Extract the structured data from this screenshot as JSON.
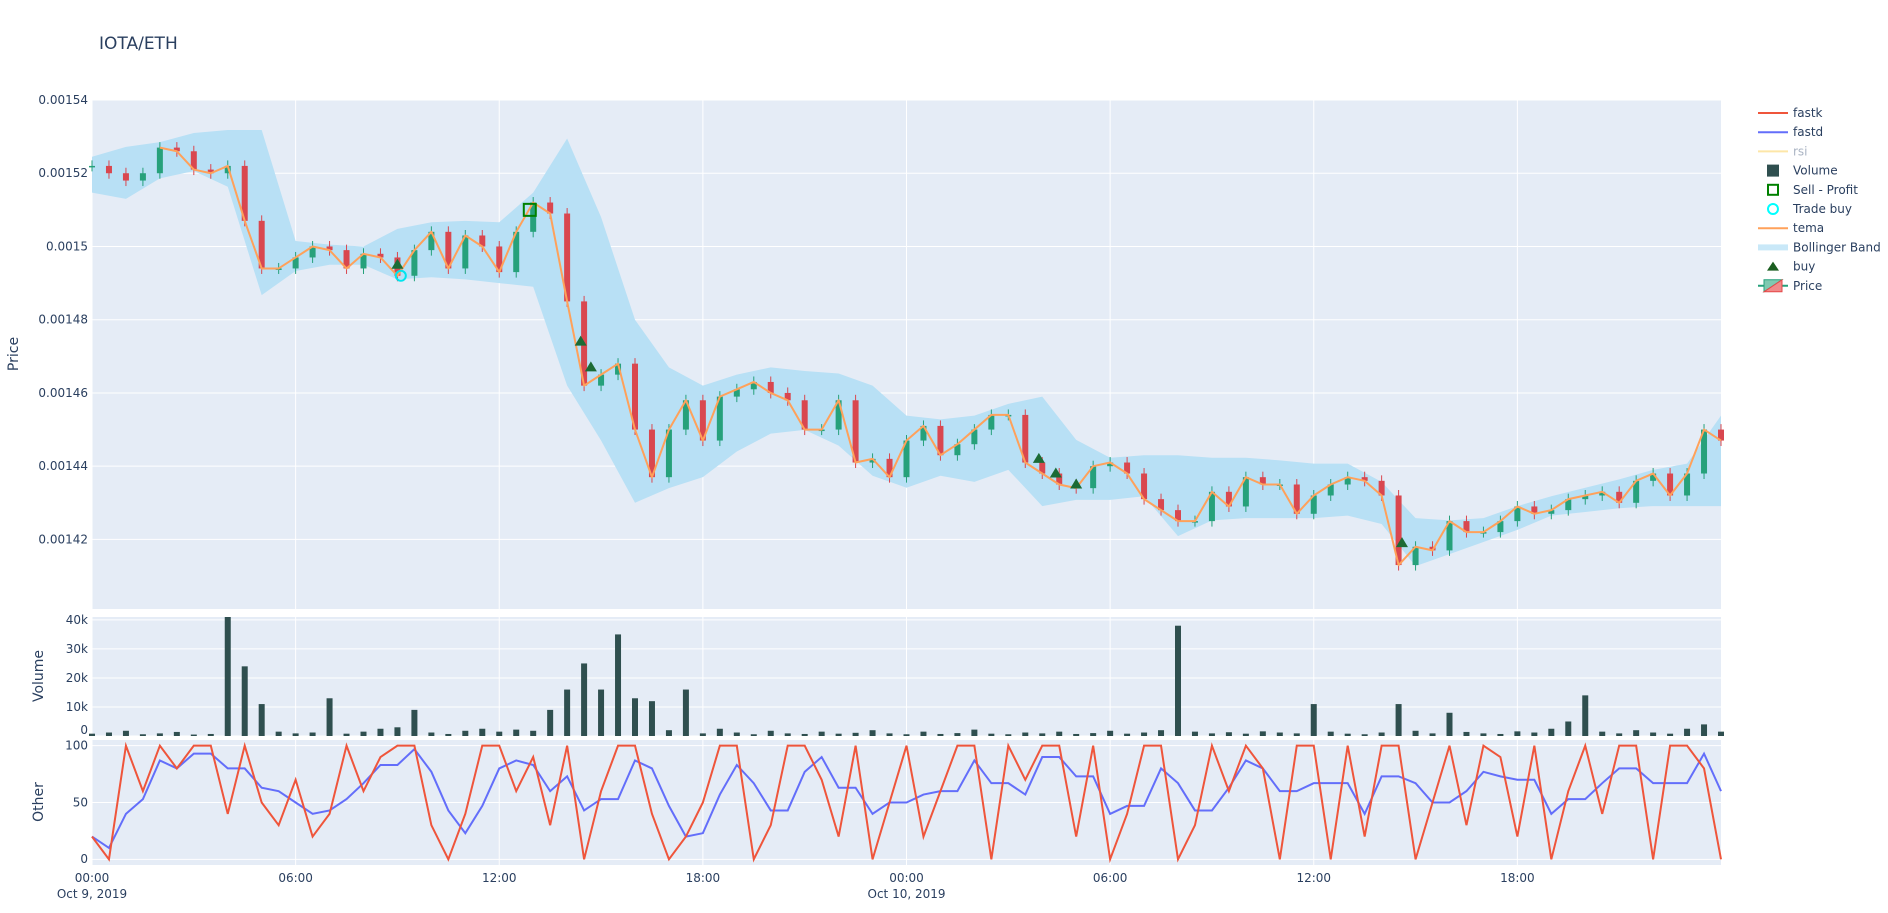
{
  "chart_data": {
    "type": "candlestick",
    "title": "IOTA/ETH",
    "panels": [
      {
        "name": "price",
        "ylabel": "Price",
        "ylim": [
          0.001401,
          0.00154
        ],
        "yticks": [
          0.00142,
          0.00144,
          0.00146,
          0.00148,
          0.0015,
          0.00152,
          0.00154
        ],
        "yticklabels": [
          "0.00142",
          "0.00144",
          "0.00146",
          "0.00148",
          "0.0015",
          "0.00152",
          "0.00154"
        ]
      },
      {
        "name": "volume",
        "ylabel": "Volume",
        "ylim": [
          0,
          41000
        ],
        "yticks": [
          0,
          10000,
          20000,
          30000,
          40000
        ],
        "yticklabels": [
          "0",
          "10k",
          "20k",
          "30k",
          "40k"
        ]
      },
      {
        "name": "other",
        "ylabel": "Other",
        "ylim": [
          -5,
          105
        ],
        "yticks": [
          0,
          50,
          100
        ],
        "yticklabels": [
          "0",
          "50",
          "100"
        ]
      }
    ],
    "xlim": [
      "2019-10-09 00:00",
      "2019-10-11 00:00"
    ],
    "xticks": [
      {
        "time": "2019-10-09 00:00",
        "label": "00:00",
        "sub": "Oct 9, 2019"
      },
      {
        "time": "2019-10-09 06:00",
        "label": "06:00",
        "sub": ""
      },
      {
        "time": "2019-10-09 12:00",
        "label": "12:00",
        "sub": ""
      },
      {
        "time": "2019-10-09 18:00",
        "label": "18:00",
        "sub": ""
      },
      {
        "time": "2019-10-10 00:00",
        "label": "00:00",
        "sub": "Oct 10, 2019"
      },
      {
        "time": "2019-10-10 06:00",
        "label": "06:00",
        "sub": ""
      },
      {
        "time": "2019-10-10 12:00",
        "label": "12:00",
        "sub": ""
      },
      {
        "time": "2019-10-10 18:00",
        "label": "18:00",
        "sub": ""
      }
    ],
    "grid": true,
    "legend_placement": "top-right",
    "time": [
      "2019-10-09 00:00",
      "2019-10-09 00:30",
      "2019-10-09 01:00",
      "2019-10-09 01:30",
      "2019-10-09 02:00",
      "2019-10-09 02:30",
      "2019-10-09 03:00",
      "2019-10-09 03:30",
      "2019-10-09 04:00",
      "2019-10-09 04:30",
      "2019-10-09 05:00",
      "2019-10-09 05:30",
      "2019-10-09 06:00",
      "2019-10-09 06:30",
      "2019-10-09 07:00",
      "2019-10-09 07:30",
      "2019-10-09 08:00",
      "2019-10-09 08:30",
      "2019-10-09 09:00",
      "2019-10-09 09:30",
      "2019-10-09 10:00",
      "2019-10-09 10:30",
      "2019-10-09 11:00",
      "2019-10-09 11:30",
      "2019-10-09 12:00",
      "2019-10-09 12:30",
      "2019-10-09 13:00",
      "2019-10-09 13:30",
      "2019-10-09 14:00",
      "2019-10-09 14:30",
      "2019-10-09 15:00",
      "2019-10-09 15:30",
      "2019-10-09 16:00",
      "2019-10-09 16:30",
      "2019-10-09 17:00",
      "2019-10-09 17:30",
      "2019-10-09 18:00",
      "2019-10-09 18:30",
      "2019-10-09 19:00",
      "2019-10-09 19:30",
      "2019-10-09 20:00",
      "2019-10-09 20:30",
      "2019-10-09 21:00",
      "2019-10-09 21:30",
      "2019-10-09 22:00",
      "2019-10-09 22:30",
      "2019-10-09 23:00",
      "2019-10-09 23:30",
      "2019-10-10 00:00",
      "2019-10-10 00:30",
      "2019-10-10 01:00",
      "2019-10-10 01:30",
      "2019-10-10 02:00",
      "2019-10-10 02:30",
      "2019-10-10 03:00",
      "2019-10-10 03:30",
      "2019-10-10 04:00",
      "2019-10-10 04:30",
      "2019-10-10 05:00",
      "2019-10-10 05:30",
      "2019-10-10 06:00",
      "2019-10-10 06:30",
      "2019-10-10 07:00",
      "2019-10-10 07:30",
      "2019-10-10 08:00",
      "2019-10-10 08:30",
      "2019-10-10 09:00",
      "2019-10-10 09:30",
      "2019-10-10 10:00",
      "2019-10-10 10:30",
      "2019-10-10 11:00",
      "2019-10-10 11:30",
      "2019-10-10 12:00",
      "2019-10-10 12:30",
      "2019-10-10 13:00",
      "2019-10-10 13:30",
      "2019-10-10 14:00",
      "2019-10-10 14:30",
      "2019-10-10 15:00",
      "2019-10-10 15:30",
      "2019-10-10 16:00",
      "2019-10-10 16:30",
      "2019-10-10 17:00",
      "2019-10-10 17:30",
      "2019-10-10 18:00",
      "2019-10-10 18:30",
      "2019-10-10 19:00",
      "2019-10-10 19:30",
      "2019-10-10 20:00",
      "2019-10-10 20:30",
      "2019-10-10 21:00",
      "2019-10-10 21:30",
      "2019-10-10 22:00",
      "2019-10-10 22:30",
      "2019-10-10 23:00",
      "2019-10-10 23:30",
      "2019-10-11 00:00"
    ],
    "close": [
      0.001522,
      0.00152,
      0.001518,
      0.00152,
      0.001527,
      0.001526,
      0.001521,
      0.00152,
      0.001522,
      0.001507,
      0.001494,
      0.001494,
      0.001497,
      0.0015,
      0.001499,
      0.001494,
      0.001498,
      0.001497,
      0.001492,
      0.001499,
      0.001504,
      0.001494,
      0.001503,
      0.0015,
      0.001493,
      0.001504,
      0.001512,
      0.001509,
      0.001485,
      0.001462,
      0.001465,
      0.001468,
      0.00145,
      0.001437,
      0.00145,
      0.001458,
      0.001447,
      0.001459,
      0.001461,
      0.001463,
      0.00146,
      0.001458,
      0.00145,
      0.00145,
      0.001458,
      0.001441,
      0.001442,
      0.001437,
      0.001447,
      0.001451,
      0.001443,
      0.001446,
      0.00145,
      0.001454,
      0.001454,
      0.001441,
      0.001438,
      0.001435,
      0.001434,
      0.00144,
      0.001441,
      0.001438,
      0.001431,
      0.001428,
      0.001425,
      0.001425,
      0.001433,
      0.001429,
      0.001437,
      0.001435,
      0.001435,
      0.001427,
      0.001432,
      0.001435,
      0.001437,
      0.001436,
      0.001432,
      0.001413,
      0.001418,
      0.001417,
      0.001425,
      0.001422,
      0.001422,
      0.001425,
      0.001429,
      0.001427,
      0.001428,
      0.001431,
      0.001432,
      0.001433,
      0.00143,
      0.001436,
      0.001438,
      0.001432,
      0.001438,
      0.00145,
      0.001447
    ],
    "tema": [
      null,
      null,
      null,
      null,
      0.001527,
      0.001526,
      0.001521,
      0.00152,
      0.001522,
      0.001507,
      0.001494,
      0.001494,
      0.001497,
      0.0015,
      0.001499,
      0.001494,
      0.001498,
      0.001497,
      0.001492,
      0.001499,
      0.001504,
      0.001494,
      0.001503,
      0.0015,
      0.001493,
      0.001504,
      0.001512,
      0.001509,
      0.001485,
      0.001462,
      0.001465,
      0.001468,
      0.00145,
      0.001437,
      0.00145,
      0.001458,
      0.001447,
      0.001459,
      0.001461,
      0.001463,
      0.00146,
      0.001458,
      0.00145,
      0.00145,
      0.001458,
      0.001441,
      0.001442,
      0.001437,
      0.001447,
      0.001451,
      0.001443,
      0.001446,
      0.00145,
      0.001454,
      0.001454,
      0.001441,
      0.001438,
      0.001435,
      0.001434,
      0.00144,
      0.001441,
      0.001438,
      0.001431,
      0.001428,
      0.001425,
      0.001425,
      0.001433,
      0.001429,
      0.001437,
      0.001435,
      0.001435,
      0.001427,
      0.001432,
      0.001435,
      0.001437,
      0.001436,
      0.001432,
      0.001413,
      0.001418,
      0.001417,
      0.001425,
      0.001422,
      0.001422,
      0.001425,
      0.001429,
      0.001427,
      0.001428,
      0.001431,
      0.001432,
      0.001433,
      0.00143,
      0.001436,
      0.001438,
      0.001432,
      0.001438,
      0.00145,
      0.001447
    ],
    "bollinger_time": [
      "2019-10-09 00:00",
      "2019-10-09 01:00",
      "2019-10-09 02:00",
      "2019-10-09 03:00",
      "2019-10-09 04:00",
      "2019-10-09 05:00",
      "2019-10-09 06:00",
      "2019-10-09 07:00",
      "2019-10-09 08:00",
      "2019-10-09 09:00",
      "2019-10-09 10:00",
      "2019-10-09 11:00",
      "2019-10-09 12:00",
      "2019-10-09 13:00",
      "2019-10-09 14:00",
      "2019-10-09 15:00",
      "2019-10-09 16:00",
      "2019-10-09 17:00",
      "2019-10-09 18:00",
      "2019-10-09 19:00",
      "2019-10-09 20:00",
      "2019-10-09 21:00",
      "2019-10-09 22:00",
      "2019-10-09 23:00",
      "2019-10-10 00:00",
      "2019-10-10 01:00",
      "2019-10-10 02:00",
      "2019-10-10 03:00",
      "2019-10-10 04:00",
      "2019-10-10 05:00",
      "2019-10-10 06:00",
      "2019-10-10 07:00",
      "2019-10-10 08:00",
      "2019-10-10 09:00",
      "2019-10-10 10:00",
      "2019-10-10 11:00",
      "2019-10-10 12:00",
      "2019-10-10 13:00",
      "2019-10-10 14:00",
      "2019-10-10 15:00",
      "2019-10-10 16:00",
      "2019-10-10 17:00",
      "2019-10-10 18:00",
      "2019-10-10 19:00",
      "2019-10-10 20:00",
      "2019-10-10 21:00",
      "2019-10-10 22:00",
      "2019-10-10 23:00",
      "2019-10-11 00:00"
    ],
    "bollinger_upper": [
      0.0015245,
      0.0015272,
      0.0015285,
      0.001531,
      0.0015318,
      0.0015318,
      0.0015015,
      0.0015005,
      0.0015,
      0.0015048,
      0.0015066,
      0.001507,
      0.0015066,
      0.0015147,
      0.0015295,
      0.001508,
      0.00148,
      0.001467,
      0.001462,
      0.001465,
      0.001467,
      0.001466,
      0.0014653,
      0.001462,
      0.0014538,
      0.0014528,
      0.0014538,
      0.001457,
      0.001459,
      0.0014472,
      0.0014423,
      0.001443,
      0.001443,
      0.0014423,
      0.0014423,
      0.0014416,
      0.0014407,
      0.0014407,
      0.0014357,
      0.0014258,
      0.0014252,
      0.0014258,
      0.0014291,
      0.0014318,
      0.0014341,
      0.0014364,
      0.001439,
      0.0014407,
      0.0014538
    ],
    "bollinger_lower": [
      0.0015147,
      0.001513,
      0.0015186,
      0.0015206,
      0.0015163,
      0.0014867,
      0.0014933,
      0.001495,
      0.001495,
      0.001491,
      0.0014916,
      0.001491,
      0.00149,
      0.001489,
      0.001462,
      0.001447,
      0.00143,
      0.001434,
      0.001437,
      0.001444,
      0.0014489,
      0.0014499,
      0.0014456,
      0.0014374,
      0.0014341,
      0.0014374,
      0.0014357,
      0.001439,
      0.0014291,
      0.0014308,
      0.0014308,
      0.0014318,
      0.0014209,
      0.0014252,
      0.0014258,
      0.0014258,
      0.0014258,
      0.0014265,
      0.0014242,
      0.0014127,
      0.001416,
      0.0014193,
      0.0014226,
      0.0014265,
      0.0014275,
      0.0014285,
      0.0014291,
      0.0014291,
      0.0014291
    ],
    "buy": [
      {
        "time": "2019-10-09 09:00",
        "price": 0.001495
      },
      {
        "time": "2019-10-09 14:24",
        "price": 0.001474
      },
      {
        "time": "2019-10-09 14:42",
        "price": 0.001467
      },
      {
        "time": "2019-10-10 03:54",
        "price": 0.001442
      },
      {
        "time": "2019-10-10 04:24",
        "price": 0.001438
      },
      {
        "time": "2019-10-10 05:00",
        "price": 0.001435
      },
      {
        "time": "2019-10-10 14:36",
        "price": 0.001419
      }
    ],
    "trade_buy": [
      {
        "time": "2019-10-09 09:06",
        "price": 0.001492
      }
    ],
    "sell_profit": [
      {
        "time": "2019-10-09 12:54",
        "price": 0.00151
      }
    ],
    "volume": [
      800,
      1200,
      1800,
      600,
      900,
      1400,
      500,
      700,
      41000,
      24000,
      11000,
      1500,
      900,
      1200,
      13000,
      800,
      1500,
      2500,
      3000,
      9000,
      1200,
      700,
      1800,
      2500,
      1500,
      2200,
      1800,
      9000,
      16000,
      25000,
      16000,
      35000,
      13000,
      12000,
      2000,
      16000,
      900,
      2500,
      1200,
      600,
      1800,
      900,
      700,
      1500,
      800,
      1100,
      2000,
      900,
      600,
      1500,
      700,
      1000,
      2200,
      800,
      600,
      1200,
      900,
      1500,
      700,
      1000,
      1800,
      800,
      1200,
      2000,
      38000,
      1500,
      900,
      1300,
      800,
      1600,
      1200,
      900,
      11000,
      1500,
      800,
      600,
      1200,
      11000,
      1800,
      900,
      8000,
      1400,
      900,
      700,
      1600,
      1200,
      2500,
      5000,
      14000,
      1500,
      900,
      2000,
      1200,
      800,
      2500,
      4000,
      1500
    ],
    "fastk": [
      20,
      0,
      100,
      60,
      100,
      80,
      100,
      100,
      40,
      100,
      50,
      30,
      70,
      20,
      40,
      100,
      60,
      90,
      100,
      100,
      30,
      0,
      40,
      100,
      100,
      60,
      90,
      30,
      100,
      0,
      60,
      100,
      100,
      40,
      0,
      20,
      50,
      100,
      100,
      0,
      30,
      100,
      100,
      70,
      20,
      100,
      0,
      50,
      100,
      20,
      60,
      100,
      100,
      0,
      100,
      70,
      100,
      100,
      20,
      100,
      0,
      40,
      100,
      100,
      0,
      30,
      100,
      60,
      100,
      80,
      0,
      100,
      100,
      0,
      100,
      20,
      100,
      100,
      0,
      50,
      100,
      30,
      100,
      90,
      20,
      100,
      0,
      60,
      100,
      40,
      100,
      100,
      0,
      100,
      100,
      80,
      0
    ],
    "fastd": [
      20,
      10,
      40,
      53,
      87,
      80,
      93,
      93,
      80,
      80,
      63,
      60,
      50,
      40,
      43,
      53,
      67,
      83,
      83,
      97,
      77,
      43,
      23,
      47,
      80,
      87,
      83,
      60,
      73,
      43,
      53,
      53,
      87,
      80,
      47,
      20,
      23,
      57,
      83,
      67,
      43,
      43,
      77,
      90,
      63,
      63,
      40,
      50,
      50,
      57,
      60,
      60,
      87,
      67,
      67,
      57,
      90,
      90,
      73,
      73,
      40,
      47,
      47,
      80,
      67,
      43,
      43,
      63,
      87,
      80,
      60,
      60,
      67,
      67,
      67,
      40,
      73,
      73,
      67,
      50,
      50,
      60,
      77,
      73,
      70,
      70,
      40,
      53,
      53,
      67,
      80,
      80,
      67,
      67,
      67,
      93,
      60
    ]
  },
  "legend": [
    {
      "label": "fastk",
      "icon": "line",
      "color": "#ef553b",
      "hidden": false
    },
    {
      "label": "fastd",
      "icon": "line",
      "color": "#636efa",
      "hidden": false
    },
    {
      "label": "rsi",
      "icon": "line",
      "color": "#fde6a8",
      "hidden": true
    },
    {
      "label": "Volume",
      "icon": "square",
      "color": "#2f4f4f",
      "hidden": false
    },
    {
      "label": "Sell - Profit",
      "icon": "square-open",
      "color": "#008000",
      "hidden": false
    },
    {
      "label": "Trade buy",
      "icon": "circle-open",
      "color": "#00ffff",
      "hidden": false
    },
    {
      "label": "tema",
      "icon": "line",
      "color": "#ffa15a",
      "hidden": false
    },
    {
      "label": "Bollinger Band",
      "icon": "band",
      "color": "#c9e8f8",
      "hidden": false
    },
    {
      "label": "buy",
      "icon": "triangle-up",
      "color": "#1b5e20",
      "hidden": false
    },
    {
      "label": "Price",
      "icon": "candle",
      "color": "#2e9e7e",
      "hidden": false
    }
  ],
  "colors": {
    "increasing": "#26a17b",
    "decreasing": "#d9474f",
    "bollinger": "#b8e0f5",
    "tema": "#ffa15a",
    "volume": "#2f4f4f",
    "fastk": "#ef553b",
    "fastd": "#636efa",
    "buy": "#1b6b35",
    "sell": "#008000",
    "trade_buy": "#00e5ee",
    "plot_bg": "#e5ecf6"
  }
}
